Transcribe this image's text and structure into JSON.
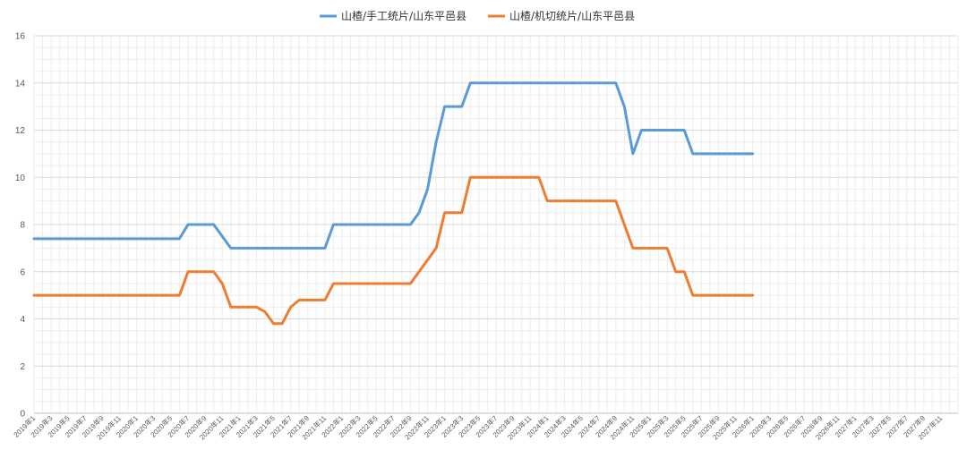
{
  "chart_data": {
    "type": "line",
    "title": "",
    "xlabel": "",
    "ylabel": "",
    "ylim": [
      0,
      16
    ],
    "yticks": [
      0,
      2,
      4,
      6,
      8,
      10,
      12,
      14,
      16
    ],
    "grid": true,
    "legend_position": "top-center",
    "x_start": "2019-01",
    "x_end": "2027-12",
    "x_tick_labels": [
      "2019年1",
      "2019年3",
      "2019年5",
      "2019年7",
      "2019年9",
      "2019年11",
      "2020年1",
      "2020年3",
      "2020年5",
      "2020年7",
      "2020年9",
      "2020年11",
      "2021年1",
      "2021年3",
      "2021年5",
      "2021年7",
      "2021年9",
      "2021年11",
      "2022年1",
      "2022年3",
      "2022年5",
      "2022年7",
      "2022年9",
      "2022年11",
      "2023年1",
      "2023年3",
      "2023年5",
      "2023年7",
      "2023年9",
      "2023年11",
      "2024年1",
      "2024年3",
      "2024年5",
      "2024年7",
      "2024年9",
      "2024年11",
      "2025年1",
      "2025年3",
      "2025年5",
      "2025年7",
      "2025年9",
      "2025年11",
      "2026年1",
      "2026年3",
      "2026年5",
      "2026年7",
      "2026年9",
      "2026年11",
      "2027年1",
      "2027年3",
      "2027年5",
      "2027年7",
      "2027年9",
      "2027年11"
    ],
    "series": [
      {
        "name": "山楂/手工统片/山东平邑县",
        "color": "#5B9BD5",
        "points": [
          [
            "2019-01",
            7.4
          ],
          [
            "2020-06",
            7.4
          ],
          [
            "2020-07",
            8.0
          ],
          [
            "2020-10",
            8.0
          ],
          [
            "2020-12",
            7.0
          ],
          [
            "2021-11",
            7.0
          ],
          [
            "2021-12",
            8.0
          ],
          [
            "2022-09",
            8.0
          ],
          [
            "2022-10",
            8.5
          ],
          [
            "2022-11",
            9.5
          ],
          [
            "2022-12",
            11.5
          ],
          [
            "2023-01",
            13.0
          ],
          [
            "2023-03",
            13.0
          ],
          [
            "2023-04",
            14.0
          ],
          [
            "2024-09",
            14.0
          ],
          [
            "2024-10",
            13.0
          ],
          [
            "2024-11",
            11.0
          ],
          [
            "2024-12",
            12.0
          ],
          [
            "2025-05",
            12.0
          ],
          [
            "2025-06",
            11.0
          ],
          [
            "2026-01",
            11.0
          ]
        ]
      },
      {
        "name": "山楂/机切统片/山东平邑县",
        "color": "#ED7D31",
        "points": [
          [
            "2019-01",
            5.0
          ],
          [
            "2020-06",
            5.0
          ],
          [
            "2020-07",
            6.0
          ],
          [
            "2020-10",
            6.0
          ],
          [
            "2020-11",
            5.5
          ],
          [
            "2020-12",
            4.5
          ],
          [
            "2021-03",
            4.5
          ],
          [
            "2021-04",
            4.3
          ],
          [
            "2021-05",
            3.8
          ],
          [
            "2021-06",
            3.8
          ],
          [
            "2021-07",
            4.5
          ],
          [
            "2021-08",
            4.8
          ],
          [
            "2021-11",
            4.8
          ],
          [
            "2021-12",
            5.5
          ],
          [
            "2022-09",
            5.5
          ],
          [
            "2022-11",
            6.5
          ],
          [
            "2022-12",
            7.0
          ],
          [
            "2023-01",
            8.5
          ],
          [
            "2023-03",
            8.5
          ],
          [
            "2023-04",
            10.0
          ],
          [
            "2023-12",
            10.0
          ],
          [
            "2024-01",
            9.0
          ],
          [
            "2024-09",
            9.0
          ],
          [
            "2024-11",
            7.0
          ],
          [
            "2025-03",
            7.0
          ],
          [
            "2025-04",
            6.0
          ],
          [
            "2025-05",
            6.0
          ],
          [
            "2025-06",
            5.0
          ],
          [
            "2026-01",
            5.0
          ]
        ]
      }
    ]
  }
}
